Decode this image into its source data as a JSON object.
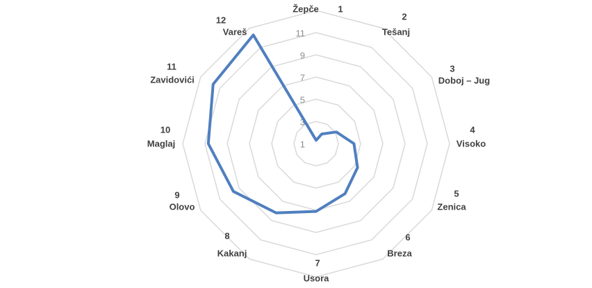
{
  "chart_data": {
    "type": "radar",
    "categories": [
      "Žepče",
      "Tešanj",
      "Doboj – Jug",
      "Visoko",
      "Zenica",
      "Breza",
      "Usora",
      "Kakanj",
      "Olovo",
      "Maglaj",
      "Zavidovići",
      "Vareš"
    ],
    "category_numbers": [
      1,
      2,
      3,
      4,
      5,
      6,
      7,
      8,
      9,
      10,
      11,
      12
    ],
    "series": [
      {
        "color": "#4f7fbf",
        "values": [
          1.3,
          2,
          3.1,
          4.4,
          5.3,
          6.2,
          7.1,
          8.2,
          9.6,
          10.7,
          11.7,
          12.3
        ]
      }
    ],
    "rlim": [
      1,
      13
    ],
    "rticks": [
      1,
      3,
      5,
      7,
      9,
      11
    ],
    "grid": true
  }
}
